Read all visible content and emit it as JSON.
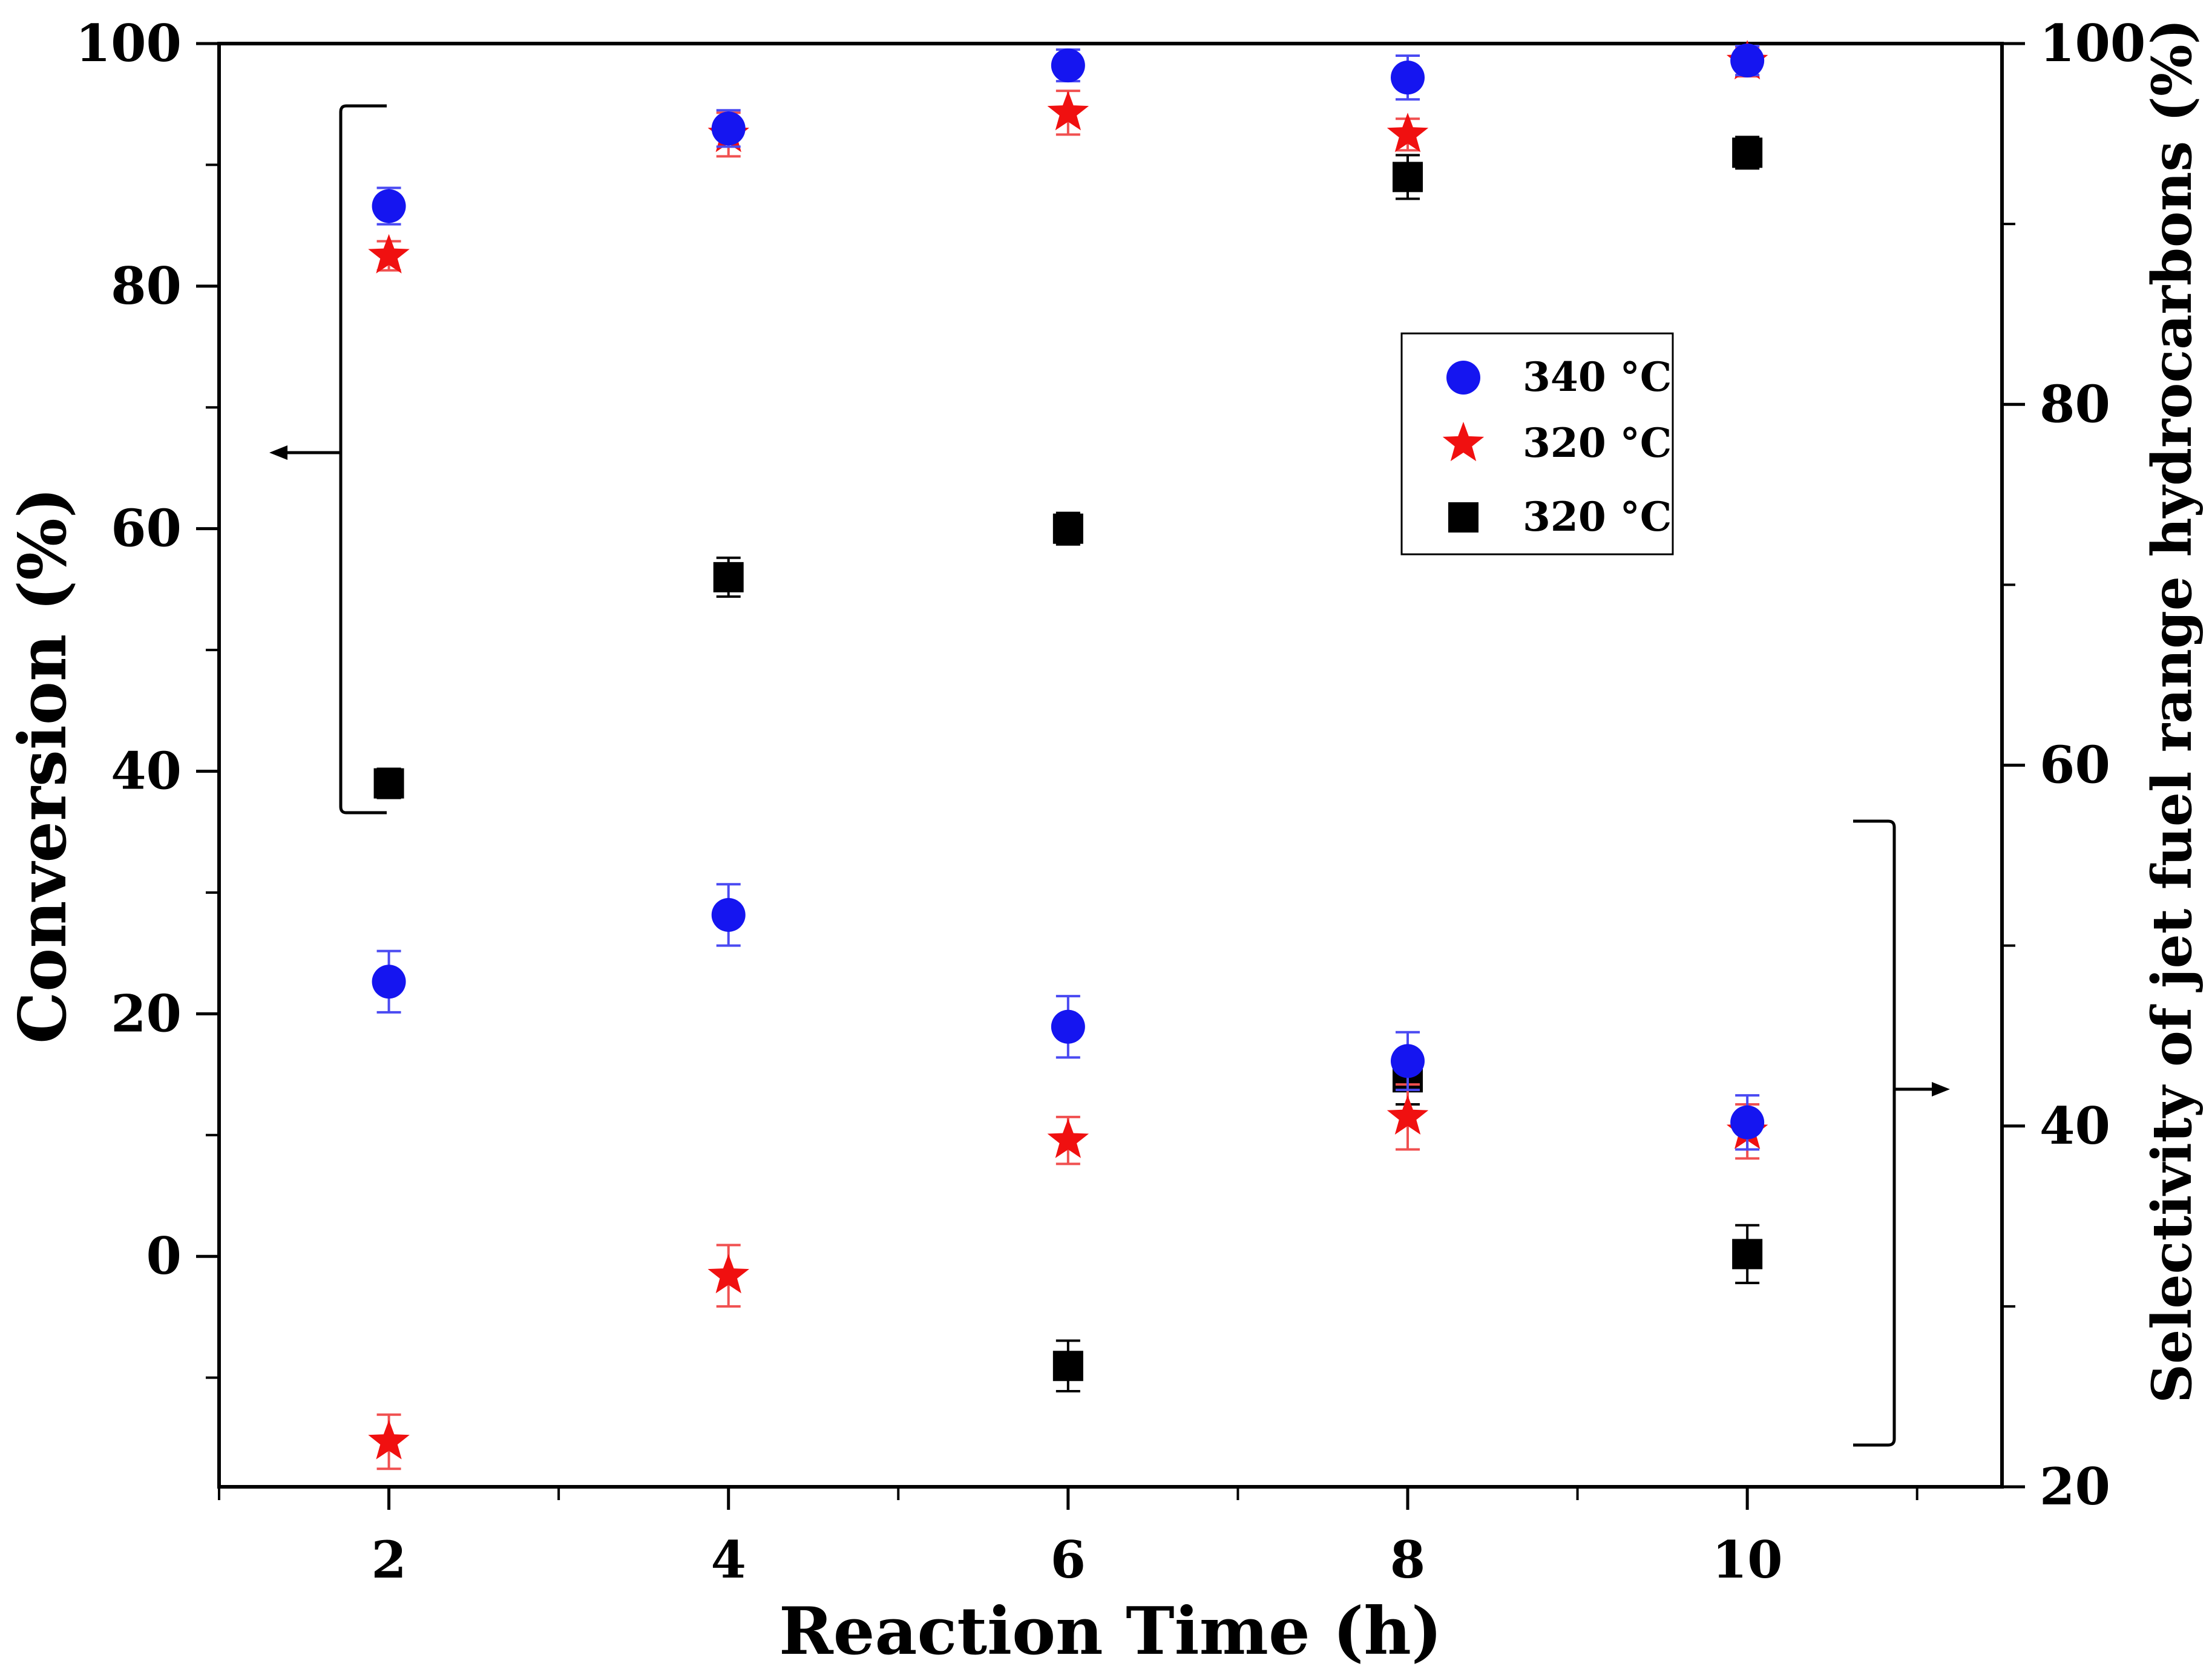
{
  "chart_data": {
    "type": "scatter",
    "x_axis": {
      "label": "Reaction Time (h)",
      "range": [
        1,
        11.5
      ],
      "ticks": [
        2,
        4,
        6,
        8,
        10
      ],
      "tick_labels": [
        "2",
        "4",
        "6",
        "8",
        "10"
      ]
    },
    "y_axis_left": {
      "label": "Conversion (%)",
      "range": [
        -19,
        100
      ],
      "ticks": [
        0,
        20,
        40,
        60,
        80,
        100
      ],
      "tick_labels": [
        "0",
        "20",
        "40",
        "60",
        "80",
        "100"
      ]
    },
    "y_axis_right": {
      "label": "Selectivity of jet fuel range hydrocarbons (%)",
      "range": [
        20,
        100
      ],
      "ticks": [
        20,
        40,
        60,
        80,
        100
      ],
      "tick_labels": [
        "20",
        "40",
        "60",
        "80",
        "100"
      ]
    },
    "series": [
      {
        "name": "340 °C",
        "group": "conversion",
        "axis": "left",
        "marker": "circle",
        "color": "#1515f0",
        "error_color": "#4a4af2",
        "x": [
          2,
          4,
          6,
          8,
          10
        ],
        "y": [
          86.6,
          93.0,
          98.2,
          97.2,
          98.6
        ],
        "err": [
          1.5,
          1.5,
          1.3,
          1.8,
          1.2
        ]
      },
      {
        "name": "320 °C",
        "group": "conversion",
        "axis": "left",
        "marker": "star",
        "color": "#f01010",
        "error_color": "#f05050",
        "x": [
          2,
          4,
          6,
          8,
          10
        ],
        "y": [
          82.5,
          92.5,
          94.3,
          92.5,
          98.5
        ],
        "err": [
          1.2,
          1.8,
          1.8,
          1.3,
          1.2
        ]
      },
      {
        "name": "320 °C",
        "group": "conversion",
        "axis": "left",
        "marker": "square",
        "color": "#000000",
        "error_color": "#000000",
        "x": [
          2,
          4,
          6,
          8,
          10
        ],
        "y": [
          39.0,
          56.0,
          60.0,
          89.0,
          91.0
        ],
        "err": [
          1.2,
          1.6,
          1.3,
          1.8,
          1.3
        ]
      },
      {
        "name": "340 °C",
        "group": "selectivity",
        "axis": "right",
        "marker": "circle",
        "color": "#1515f0",
        "error_color": "#4a4af2",
        "x": [
          2,
          4,
          6,
          8,
          10
        ],
        "y": [
          48.0,
          51.7,
          45.5,
          43.6,
          40.2
        ],
        "err": [
          1.7,
          1.7,
          1.7,
          1.6,
          1.5
        ]
      },
      {
        "name": "320 °C",
        "group": "selectivity",
        "axis": "right",
        "marker": "star",
        "color": "#f01010",
        "error_color": "#f05050",
        "x": [
          2,
          4,
          6,
          8,
          10
        ],
        "y": [
          22.5,
          31.7,
          39.2,
          40.5,
          39.7
        ],
        "err": [
          1.5,
          1.7,
          1.3,
          1.8,
          1.5
        ]
      },
      {
        "name": "320 °C",
        "group": "selectivity",
        "axis": "right",
        "marker": "square",
        "color": "#000000",
        "error_color": "#000000",
        "x": [
          2,
          4,
          6,
          8,
          10
        ],
        "y": [
          null,
          null,
          26.7,
          42.7,
          32.9
        ],
        "err": [
          0,
          0,
          1.4,
          1.5,
          1.6
        ]
      }
    ],
    "legend": {
      "position": "upper-right",
      "entries": [
        {
          "label": "340 °C",
          "marker": "circle",
          "color": "#1515f0"
        },
        {
          "label": "320 °C",
          "marker": "star",
          "color": "#f01010"
        },
        {
          "label": "320 °C",
          "marker": "square",
          "color": "#000000"
        }
      ]
    },
    "annotations": [
      {
        "type": "bracket-arrow",
        "target_axis": "left",
        "direction": "left",
        "spans_group": "conversion"
      },
      {
        "type": "bracket-arrow",
        "target_axis": "right",
        "direction": "right",
        "spans_group": "selectivity"
      }
    ]
  }
}
